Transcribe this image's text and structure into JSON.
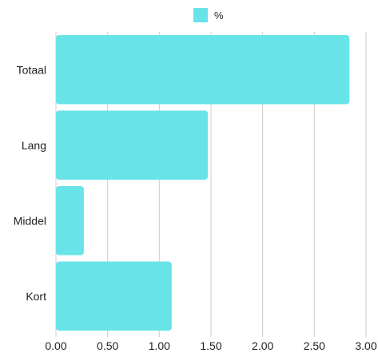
{
  "chart_data": {
    "type": "bar",
    "orientation": "horizontal",
    "categories": [
      "Totaal",
      "Lang",
      "Middel",
      "Kort"
    ],
    "series": [
      {
        "name": "%",
        "values": [
          2.84,
          1.47,
          0.27,
          1.12
        ],
        "color": "#68e4e8"
      }
    ],
    "xlim": [
      0,
      3.0
    ],
    "xticks": [
      "0.00",
      "0.50",
      "1.00",
      "1.50",
      "2.00",
      "2.50",
      "3.00"
    ],
    "grid": true,
    "legend": "top-center",
    "gridColor": "#cccccc"
  }
}
